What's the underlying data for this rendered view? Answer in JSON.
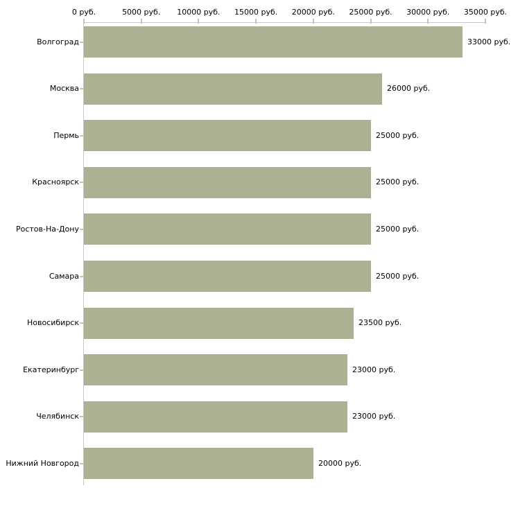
{
  "chart_data": {
    "type": "bar",
    "orientation": "horizontal",
    "title": "",
    "xlabel": "",
    "ylabel": "",
    "grid": false,
    "legend": false,
    "categories": [
      "Волгоград",
      "Москва",
      "Пермь",
      "Красноярск",
      "Ростов-На-Дону",
      "Самара",
      "Новосибирск",
      "Екатеринбург",
      "Челябинск",
      "Нижний Новгород"
    ],
    "values": [
      33000,
      26000,
      25000,
      25000,
      25000,
      25000,
      23500,
      23000,
      23000,
      20000
    ],
    "value_labels": [
      "33000 руб.",
      "26000 руб.",
      "25000 руб.",
      "25000 руб.",
      "25000 руб.",
      "25000 руб.",
      "23500 руб.",
      "23000 руб.",
      "23000 руб.",
      "20000 руб."
    ],
    "x_axis": {
      "position": "top",
      "xlim": [
        0,
        35000
      ],
      "tick_values": [
        0,
        5000,
        10000,
        15000,
        20000,
        25000,
        30000,
        35000
      ],
      "tick_labels": [
        "0 руб.",
        "5000 руб.",
        "10000 руб.",
        "15000 руб.",
        "20000 руб.",
        "25000 руб.",
        "30000 руб.",
        "35000 руб."
      ]
    },
    "colors": {
      "bar": "#abb294",
      "axis_line": "#c6c6c6",
      "tick_mark": "#c9c39e",
      "text": "#000000",
      "background": "#ffffff"
    }
  }
}
